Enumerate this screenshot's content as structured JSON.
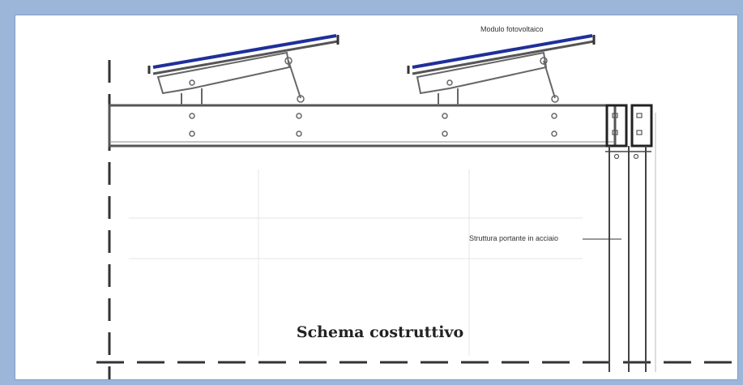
{
  "diagram": {
    "caption": "Schema costruttivo",
    "label_module": "Modulo fotovoltaico",
    "label_structure": "Struttura portante in acciaio"
  },
  "colors": {
    "frame": "#9bb6d9",
    "panel_blue": "#1f2f9a",
    "line": "#555555"
  }
}
